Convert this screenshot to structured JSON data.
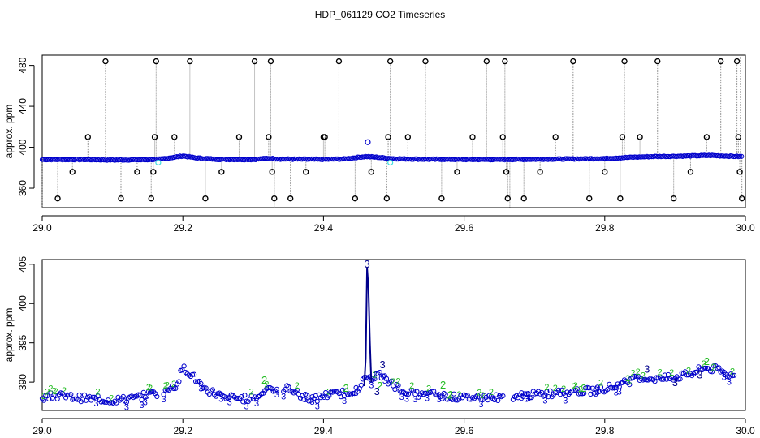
{
  "figure": {
    "title": "HDP_061129  CO2 Timeseries"
  },
  "colors": {
    "axis": "#000000",
    "outlier": "#000000",
    "series_main": "#0000cc",
    "series_dark": "#00008b",
    "series_cyan": "#44dddd",
    "series_green": "#22bb22",
    "spike_line": "#888888"
  },
  "chart_data": [
    {
      "type": "scatter",
      "title": "",
      "xlabel": "",
      "ylabel": "approx. ppm",
      "xlim": [
        29.0,
        30.0
      ],
      "ylim": [
        341,
        490
      ],
      "x_ticks": [
        29.0,
        29.2,
        29.4,
        29.6,
        29.8,
        30.0
      ],
      "x_tick_labels": [
        "29.0",
        "29.2",
        "29.4",
        "29.6",
        "29.8",
        "30.0"
      ],
      "y_ticks": [
        360,
        400,
        440,
        480
      ],
      "y_tick_labels": [
        "360",
        "400",
        "440",
        "480"
      ],
      "baseline": {
        "x": [
          29.0,
          29.05,
          29.1,
          29.15,
          29.17,
          29.2,
          29.22,
          29.25,
          29.3,
          29.32,
          29.34,
          29.4,
          29.43,
          29.46,
          29.48,
          29.5,
          29.55,
          29.6,
          29.65,
          29.7,
          29.75,
          29.8,
          29.83,
          29.87,
          29.9,
          29.95,
          29.99
        ],
        "y": [
          388,
          388,
          387.6,
          387.8,
          388.5,
          391.5,
          389.5,
          388.2,
          388,
          389.2,
          388.5,
          388.2,
          388.6,
          391,
          390,
          388.8,
          388.3,
          388.1,
          388,
          388.3,
          388.6,
          389,
          390,
          391,
          391.2,
          392,
          391
        ]
      },
      "cyan_points": {
        "x": [
          29.165,
          29.495
        ],
        "y": [
          385,
          385
        ]
      },
      "blue_outlier": {
        "x": [
          29.463
        ],
        "y": [
          405
        ]
      },
      "outliers": {
        "x": [
          29.022,
          29.043,
          29.065,
          29.09,
          29.112,
          29.135,
          29.155,
          29.158,
          29.16,
          29.162,
          29.188,
          29.21,
          29.232,
          29.255,
          29.28,
          29.302,
          29.322,
          29.325,
          29.327,
          29.33,
          29.353,
          29.375,
          29.4,
          29.402,
          29.422,
          29.445,
          29.468,
          29.49,
          29.492,
          29.495,
          29.52,
          29.545,
          29.568,
          29.59,
          29.612,
          29.632,
          29.655,
          29.658,
          29.66,
          29.662,
          29.685,
          29.708,
          29.73,
          29.755,
          29.778,
          29.8,
          29.822,
          29.825,
          29.828,
          29.85,
          29.875,
          29.898,
          29.922,
          29.945,
          29.965,
          29.988,
          29.99,
          29.992,
          29.995
        ],
        "y": [
          350,
          376,
          410,
          484,
          350,
          376,
          350,
          376,
          410,
          484,
          410,
          484,
          350,
          376,
          410,
          484,
          410,
          484,
          376,
          350,
          350,
          376,
          410,
          410,
          484,
          350,
          376,
          350,
          410,
          484,
          410,
          484,
          350,
          376,
          410,
          484,
          410,
          484,
          376,
          350,
          350,
          376,
          410,
          484,
          350,
          376,
          350,
          410,
          484,
          410,
          484,
          350,
          376,
          410,
          484,
          484,
          410,
          376,
          350
        ]
      }
    },
    {
      "type": "scatter",
      "title": "",
      "xlabel": "",
      "ylabel": "approx. ppm",
      "xlim": [
        29.0,
        30.0
      ],
      "ylim": [
        386.4,
        405.6
      ],
      "x_ticks": [
        29.0,
        29.2,
        29.4,
        29.6,
        29.8,
        30.0
      ],
      "x_tick_labels": [
        "29.0",
        "29.2",
        "29.4",
        "29.6",
        "29.8",
        "30.0"
      ],
      "y_ticks": [
        390,
        395,
        400,
        405
      ],
      "y_tick_labels": [
        "390",
        "395",
        "400",
        "405"
      ],
      "series": [
        {
          "x": [
            29.0,
            29.02,
            29.05,
            29.08,
            29.1,
            29.13,
            29.15,
            29.17,
            29.19,
            29.2,
            29.21,
            29.23,
            29.25,
            29.27,
            29.29,
            29.31,
            29.32,
            29.34,
            29.35,
            29.37,
            29.39,
            29.4,
            29.42,
            29.44,
            29.45,
            29.46,
            29.47,
            29.48,
            29.49,
            29.5,
            29.52,
            29.54,
            29.56,
            29.58,
            29.6,
            29.62,
            29.65,
            29.67,
            29.7,
            29.73,
            29.76,
            29.78,
            29.8,
            29.82,
            29.84,
            29.86,
            29.88,
            29.9,
            29.92,
            29.94,
            29.96,
            29.98,
            29.99
          ],
          "y": [
            388,
            388.3,
            388,
            387.8,
            387.7,
            387.9,
            388.4,
            388.6,
            389.5,
            391.8,
            391.2,
            389.2,
            388.4,
            388,
            387.9,
            388.2,
            389.6,
            388.3,
            389.4,
            388.1,
            387.9,
            388.3,
            388.5,
            388.8,
            389.3,
            390.5,
            390.7,
            390.9,
            390.2,
            389.6,
            388.7,
            388.3,
            388.5,
            388.1,
            388,
            388.1,
            388,
            388.2,
            388.4,
            388.6,
            388.8,
            388.9,
            389.2,
            389.6,
            390.3,
            390.5,
            390.4,
            390.6,
            391,
            391.8,
            391.6,
            390.8,
            390.7
          ]
        }
      ],
      "spike": {
        "x": [
          29.458,
          29.46,
          29.462,
          29.464,
          29.466,
          29.468
        ],
        "y": [
          389.5,
          393,
          404.5,
          402,
          395,
          390
        ]
      },
      "labels": [
        {
          "x": 29.462,
          "y": 405,
          "text": "3"
        },
        {
          "x": 29.484,
          "y": 392.2,
          "text": "3"
        },
        {
          "x": 29.316,
          "y": 390.2,
          "text": "2"
        },
        {
          "x": 29.432,
          "y": 389.2,
          "text": "2"
        },
        {
          "x": 29.476,
          "y": 388.8,
          "text": "3"
        },
        {
          "x": 29.48,
          "y": 389.5,
          "text": "2"
        },
        {
          "x": 29.77,
          "y": 389.2,
          "text": "2"
        },
        {
          "x": 29.9,
          "y": 389.9,
          "text": "3"
        },
        {
          "x": 29.945,
          "y": 392.6,
          "text": "2"
        },
        {
          "x": 29.955,
          "y": 391.8,
          "text": "2"
        },
        {
          "x": 29.935,
          "y": 390.9,
          "text": "3"
        },
        {
          "x": 29.86,
          "y": 391.6,
          "text": "3"
        },
        {
          "x": 29.57,
          "y": 389.6,
          "text": "2"
        },
        {
          "x": 29.58,
          "y": 388.3,
          "text": "2"
        }
      ]
    }
  ]
}
